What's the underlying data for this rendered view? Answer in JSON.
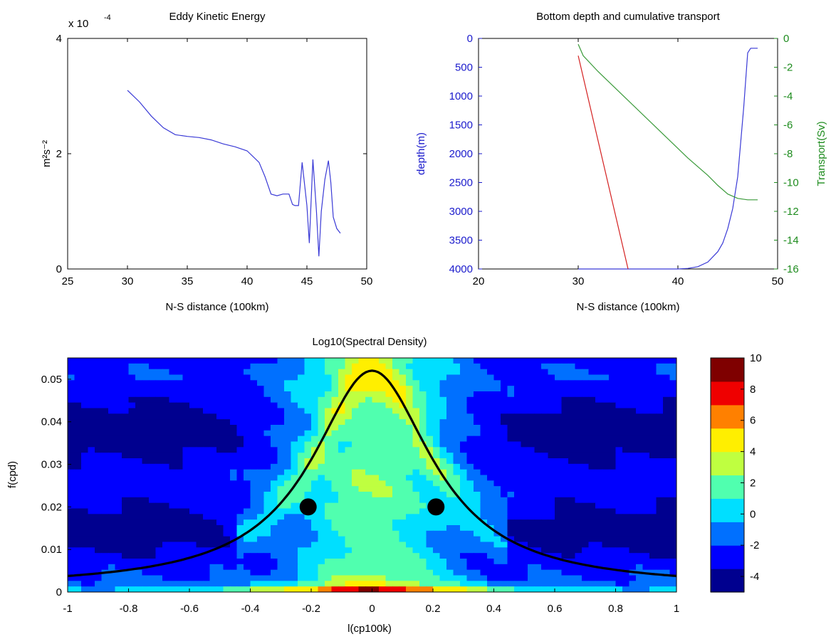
{
  "chart_data": [
    {
      "type": "line",
      "title": "Eddy Kinetic Energy",
      "xlabel": "N-S distance (100km)",
      "ylabel": "m²s⁻²",
      "y_multiplier_label": "x 10",
      "y_multiplier_exponent": "-4",
      "xlim": [
        25,
        50
      ],
      "ylim": [
        0,
        4
      ],
      "x_ticks": [
        "25",
        "30",
        "35",
        "40",
        "45",
        "50"
      ],
      "y_ticks": [
        "0",
        "2",
        "4"
      ],
      "series": [
        {
          "color": "#3a3ad6",
          "x": [
            30,
            31,
            32,
            33,
            34,
            35,
            36,
            37,
            38,
            39,
            40,
            41,
            41.5,
            42,
            42.5,
            43,
            43.5,
            43.8,
            44,
            44.3,
            44.6,
            45,
            45.2,
            45.5,
            45.8,
            46,
            46.2,
            46.5,
            46.8,
            47,
            47.2,
            47.5,
            47.8
          ],
          "y": [
            3.1,
            2.9,
            2.65,
            2.45,
            2.33,
            2.3,
            2.28,
            2.24,
            2.17,
            2.12,
            2.05,
            1.85,
            1.6,
            1.3,
            1.27,
            1.3,
            1.3,
            1.12,
            1.1,
            1.1,
            1.85,
            1.1,
            0.45,
            1.9,
            1.0,
            0.22,
            1.0,
            1.55,
            1.88,
            1.5,
            0.9,
            0.7,
            0.62
          ]
        }
      ]
    },
    {
      "type": "line",
      "title": "Bottom depth and cumulative transport",
      "xlabel": "N-S distance (100km)",
      "ylabel_left": "depth(m)",
      "ylabel_right": "Transport(Sv)",
      "xlim": [
        20,
        50
      ],
      "ylim_left": [
        4000,
        0
      ],
      "ylim_right": [
        -16,
        0
      ],
      "x_ticks": [
        "20",
        "30",
        "40",
        "50"
      ],
      "y_ticks_left": [
        "0",
        "500",
        "1000",
        "1500",
        "2000",
        "2500",
        "3000",
        "3500",
        "4000"
      ],
      "y_ticks_right": [
        "0",
        "-2",
        "-4",
        "-6",
        "-8",
        "-10",
        "-12",
        "-14",
        "-16"
      ],
      "colors": {
        "depth": "#1a1acc",
        "transport": "#1e8c1e",
        "slope": "#d42020"
      },
      "series": [
        {
          "axis": "left",
          "color": "#3a3ad6",
          "x": [
            30,
            35,
            40,
            41,
            42,
            43,
            44,
            44.5,
            45,
            45.5,
            46,
            46.3,
            46.6,
            47,
            47.3,
            48
          ],
          "y": [
            4000,
            4000,
            4000,
            3990,
            3960,
            3880,
            3700,
            3550,
            3300,
            2950,
            2400,
            1800,
            1200,
            250,
            170,
            170
          ]
        },
        {
          "axis": "right",
          "color": "#3a9a3a",
          "x": [
            30,
            30.5,
            32,
            35,
            38,
            41,
            43,
            44,
            45,
            46,
            47,
            48
          ],
          "y": [
            -0.4,
            -1.2,
            -2.3,
            -4.3,
            -6.3,
            -8.3,
            -9.5,
            -10.2,
            -10.8,
            -11.1,
            -11.2,
            -11.2
          ]
        },
        {
          "axis": "left",
          "color": "#d42020",
          "x": [
            30,
            35
          ],
          "y": [
            300,
            4000
          ]
        }
      ]
    },
    {
      "type": "heatmap",
      "title": "Log10(Spectral Density)",
      "xlabel": "l(cp100k)",
      "ylabel": "f(cpd)",
      "xlim": [
        -1,
        1
      ],
      "ylim": [
        0,
        0.055
      ],
      "x_ticks": [
        "-1",
        "-0.8",
        "-0.6",
        "-0.4",
        "-0.2",
        "0",
        "0.2",
        "0.4",
        "0.6",
        "0.8",
        "1"
      ],
      "y_ticks": [
        "0",
        "0.01",
        "0.02",
        "0.03",
        "0.04",
        "0.05"
      ],
      "colorbar": {
        "range": [
          -5,
          10
        ],
        "ticks": [
          "-4",
          "-2",
          "0",
          "2",
          "4",
          "6",
          "8",
          "10"
        ],
        "colors": [
          "#00008f",
          "#0000ff",
          "#0070ff",
          "#00dfff",
          "#50ffaf",
          "#bfff40",
          "#ffef00",
          "#ff8000",
          "#ef0000",
          "#7f0000"
        ]
      },
      "dispersion_curve": {
        "color": "#000000",
        "peak": {
          "x": 0,
          "y": 0.052
        },
        "width": 0.24,
        "floor": 0.001
      },
      "markers": [
        {
          "x": -0.21,
          "y": 0.02
        },
        {
          "x": 0.21,
          "y": 0.02
        }
      ]
    }
  ]
}
